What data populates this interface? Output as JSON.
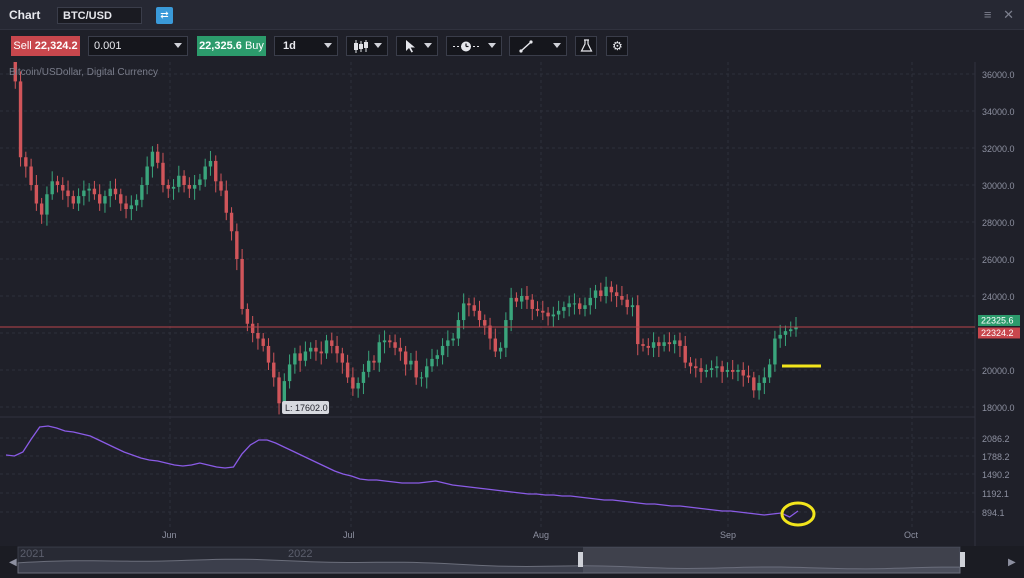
{
  "window": {
    "title": "Chart",
    "symbol": "BTC/USD",
    "symbol_button_icon": "swap-icon",
    "window_icons": [
      "menu-icon",
      "close-icon"
    ]
  },
  "toolbar": {
    "sell_label": "Sell",
    "sell_price": "22,324.2",
    "quantity": "0.001",
    "buy_price": "22,325.6",
    "buy_label": "Buy",
    "timeframe": "1d",
    "chart_type_icon": "candlestick-icon",
    "cursor_icon": "cursor-arrow-icon",
    "crosshair_icon": "crosshair-clock-icon",
    "drawing_icon": "line-draw-icon",
    "indicator_icon": "flask-icon",
    "settings_icon": "gear-icon"
  },
  "chart": {
    "caption": "Bitcoin/USDollar, Digital Currency",
    "low_label": "L: 17602.0",
    "buy_price_tag": "22325.6",
    "sell_price_tag": "22324.2",
    "buy_tag_color": "#2c9b6c",
    "sell_tag_color": "#c8474d",
    "up_color": "#3aa57c",
    "down_color": "#d0555a",
    "indicator_color": "#8a5be6",
    "annotation_color": "#f2e51c"
  },
  "chart_data": {
    "type": "candlestick",
    "x_ticks": [
      "Jun",
      "Jul",
      "Aug",
      "Sep",
      "Oct"
    ],
    "y_ticks": [
      "36000.0",
      "34000.0",
      "32000.0",
      "30000.0",
      "28000.0",
      "26000.0",
      "24000.0",
      "22000.0",
      "20000.0",
      "18000.0"
    ],
    "indicator_ticks": [
      "2086.2",
      "1788.2",
      "1490.2",
      "1192.1",
      "894.1"
    ],
    "current_price_line": 22325,
    "low": 17602,
    "closes": [
      37000,
      35600,
      31500,
      31000,
      30000,
      29000,
      28400,
      29500,
      30200,
      30000,
      29700,
      29400,
      29000,
      29400,
      29700,
      29800,
      29500,
      29000,
      29400,
      29800,
      29500,
      29000,
      28700,
      28900,
      29200,
      30000,
      31000,
      31800,
      31200,
      30000,
      29800,
      29900,
      30500,
      30000,
      29800,
      30000,
      30300,
      31000,
      31300,
      30200,
      29700,
      28500,
      27500,
      26000,
      23300,
      22500,
      22000,
      21700,
      21300,
      20400,
      19600,
      18200,
      19400,
      20300,
      20900,
      20500,
      21000,
      21200,
      21000,
      20900,
      21600,
      21300,
      20900,
      20400,
      19600,
      19000,
      19300,
      19900,
      20500,
      20400,
      21500,
      21600,
      21500,
      21200,
      21000,
      20300,
      20500,
      19600,
      19600,
      20200,
      20600,
      20800,
      21300,
      21600,
      21700,
      22700,
      23600,
      23500,
      23200,
      22700,
      22400,
      21700,
      21000,
      21200,
      22700,
      23900,
      23700,
      24000,
      23800,
      23300,
      23200,
      23100,
      22900,
      23000,
      23200,
      23400,
      23600,
      23600,
      23300,
      23500,
      23900,
      24300,
      24000,
      24500,
      24200,
      24000,
      23800,
      23400,
      23500,
      21400,
      21300,
      21200,
      21500,
      21300,
      21500,
      21400,
      21600,
      21300,
      20400,
      20200,
      20100,
      19900,
      20000,
      20100,
      20200,
      19900,
      20000,
      19900,
      20000,
      19700,
      19600,
      18900,
      19300,
      19600,
      20300,
      21700,
      21900,
      22100,
      22200,
      22325
    ]
  },
  "navigator": {
    "label_2021": "2021",
    "label_2022": "2022"
  }
}
